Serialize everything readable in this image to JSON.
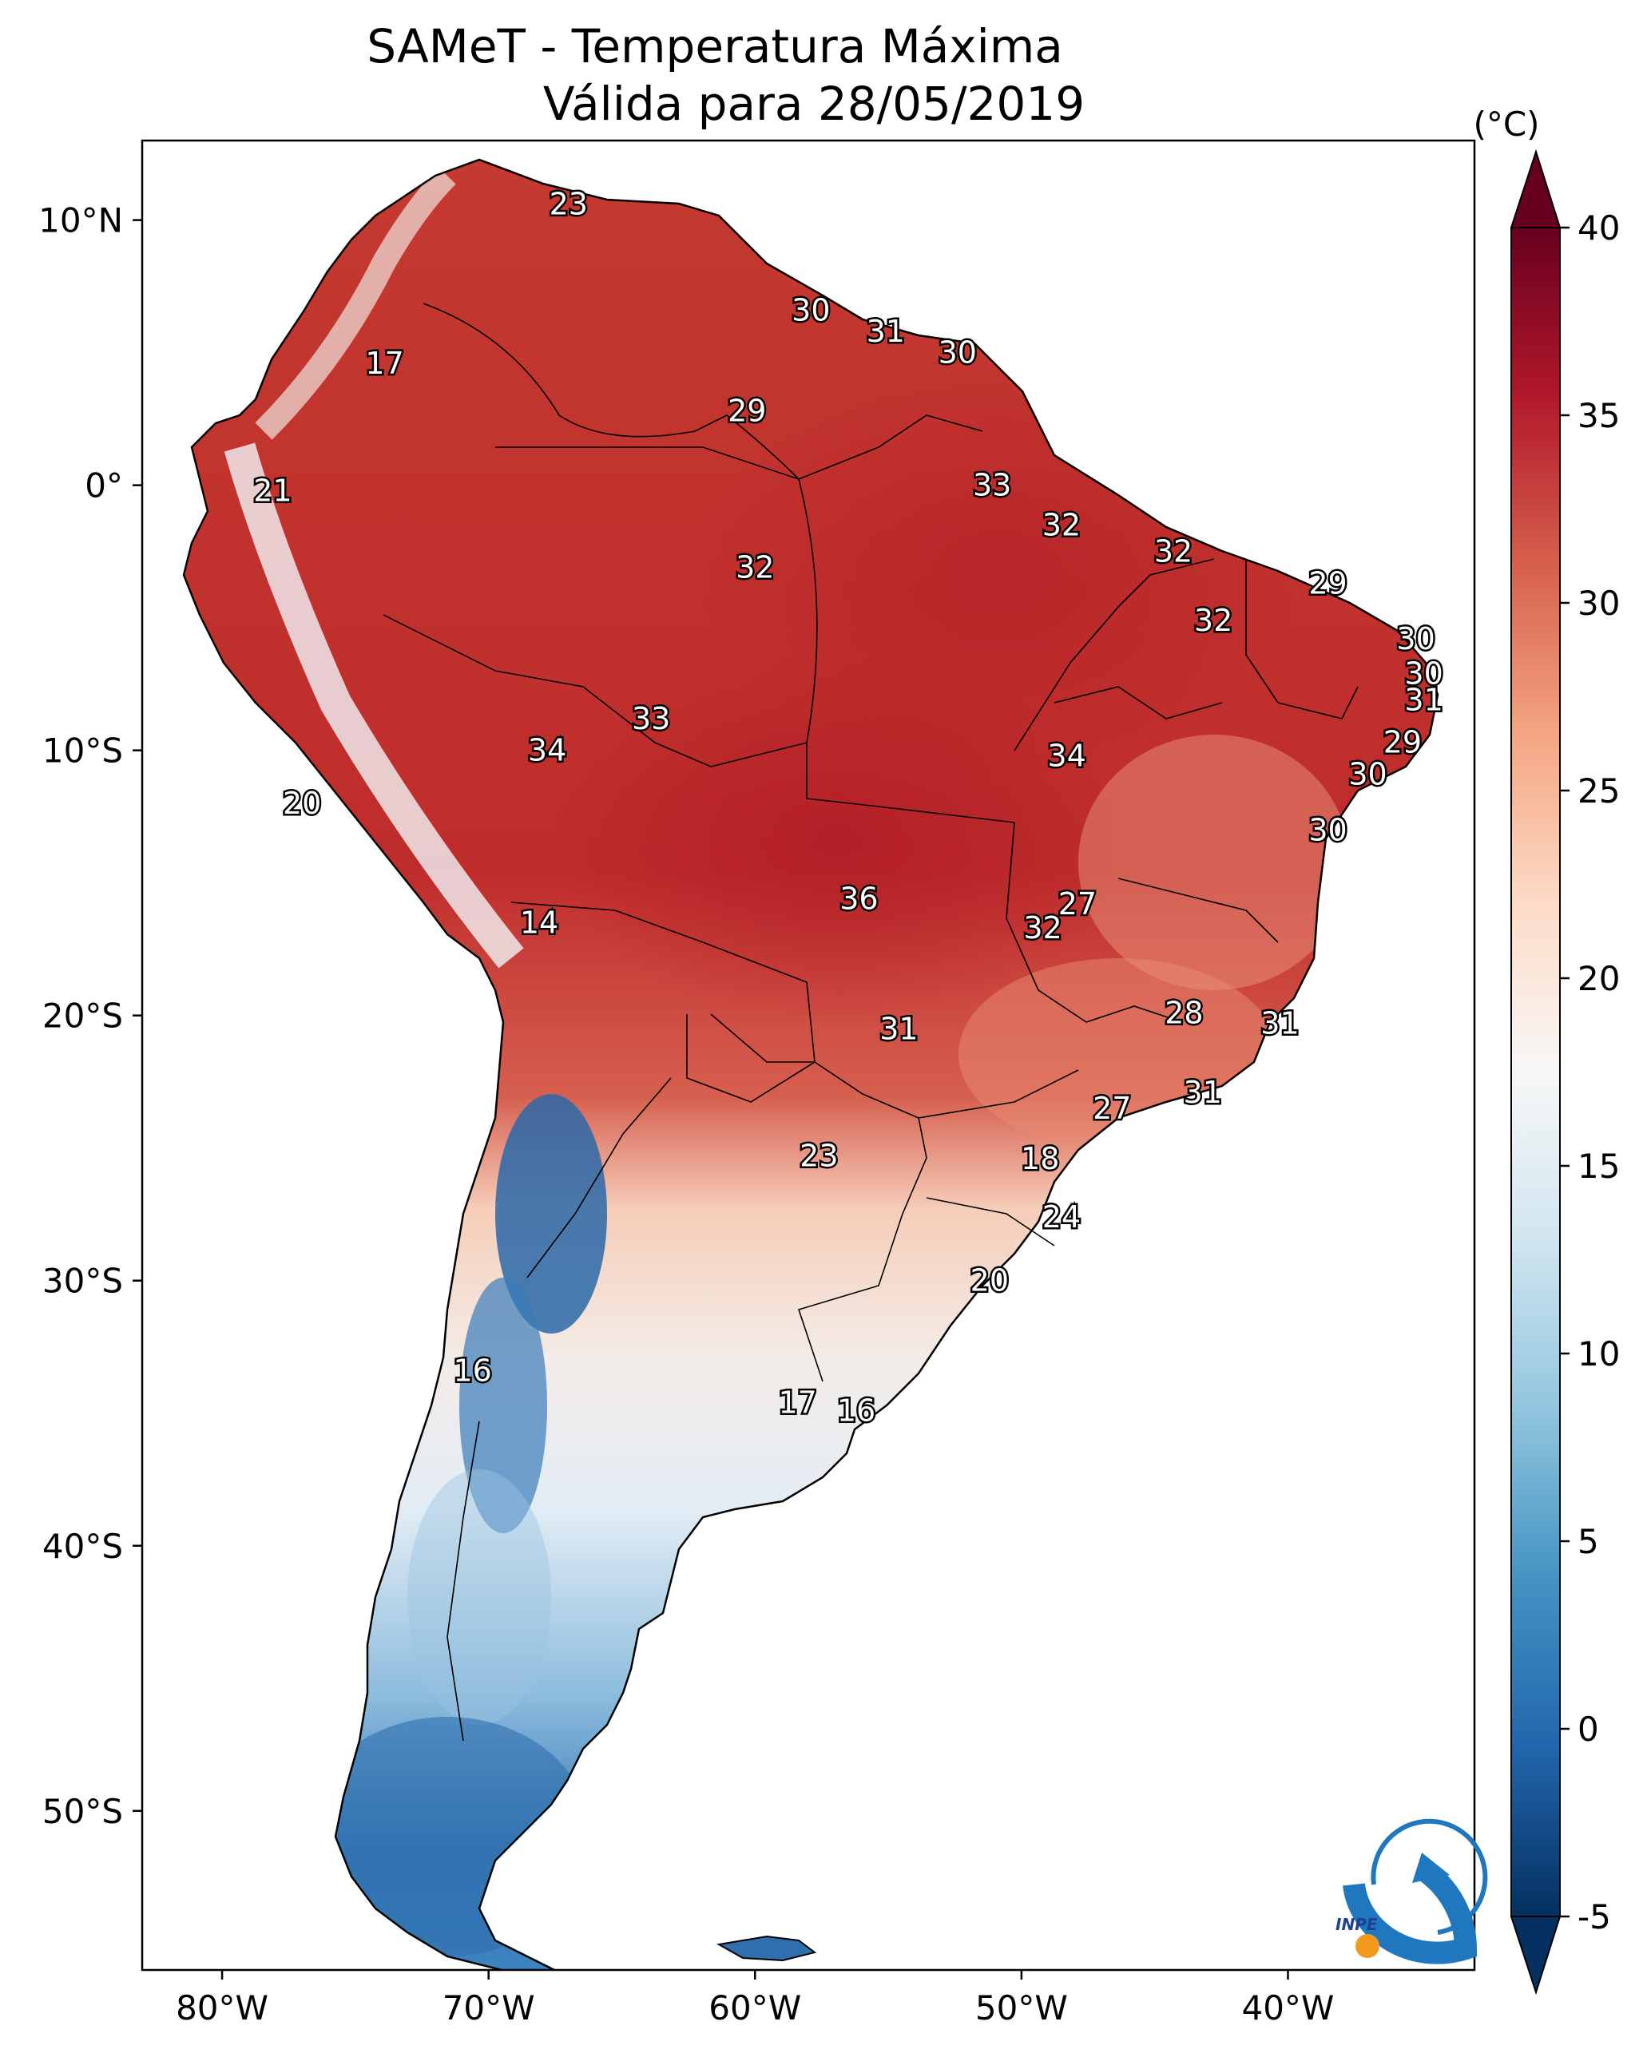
{
  "title_line1": "SAMeT - Temperatura Máxima",
  "title_line2": "Válida para 28/05/2019",
  "map": {
    "lon_min": -83,
    "lon_max": -33,
    "lat_min": -56,
    "lat_max": 13,
    "lon_ticks": [
      {
        "value": -80,
        "label": "80°W"
      },
      {
        "value": -70,
        "label": "70°W"
      },
      {
        "value": -60,
        "label": "60°W"
      },
      {
        "value": -50,
        "label": "50°W"
      },
      {
        "value": -40,
        "label": "40°W"
      }
    ],
    "lat_ticks": [
      {
        "value": 10,
        "label": "10°N"
      },
      {
        "value": 0,
        "label": "0°"
      },
      {
        "value": -10,
        "label": "10°S"
      },
      {
        "value": -20,
        "label": "20°S"
      },
      {
        "value": -30,
        "label": "30°S"
      },
      {
        "value": -40,
        "label": "40°S"
      },
      {
        "value": -50,
        "label": "50°S"
      }
    ],
    "city_values": [
      {
        "lon": -67,
        "lat": 10.6,
        "text": "23"
      },
      {
        "lon": -57.9,
        "lat": 6.6,
        "text": "30"
      },
      {
        "lon": -55.1,
        "lat": 5.8,
        "text": "31"
      },
      {
        "lon": -52.4,
        "lat": 5.0,
        "text": "30"
      },
      {
        "lon": -73.9,
        "lat": 4.6,
        "text": "17"
      },
      {
        "lon": -60.3,
        "lat": 2.8,
        "text": "29"
      },
      {
        "lon": -51.1,
        "lat": 0.0,
        "text": "33"
      },
      {
        "lon": -78.1,
        "lat": -0.2,
        "text": "21"
      },
      {
        "lon": -48.5,
        "lat": -1.5,
        "text": "32"
      },
      {
        "lon": -44.3,
        "lat": -2.5,
        "text": "32"
      },
      {
        "lon": -60.0,
        "lat": -3.1,
        "text": "32"
      },
      {
        "lon": -38.5,
        "lat": -3.7,
        "text": "29"
      },
      {
        "lon": -42.8,
        "lat": -5.1,
        "text": "32"
      },
      {
        "lon": -35.2,
        "lat": -5.8,
        "text": "30"
      },
      {
        "lon": -34.9,
        "lat": -7.1,
        "text": "30"
      },
      {
        "lon": -34.9,
        "lat": -8.1,
        "text": "31"
      },
      {
        "lon": -63.9,
        "lat": -8.8,
        "text": "33"
      },
      {
        "lon": -35.7,
        "lat": -9.7,
        "text": "29"
      },
      {
        "lon": -67.8,
        "lat": -10.0,
        "text": "34"
      },
      {
        "lon": -48.3,
        "lat": -10.2,
        "text": "34"
      },
      {
        "lon": -37.0,
        "lat": -10.9,
        "text": "30"
      },
      {
        "lon": -77.0,
        "lat": -12.0,
        "text": "20"
      },
      {
        "lon": -38.5,
        "lat": -13.0,
        "text": "30"
      },
      {
        "lon": -56.1,
        "lat": -15.6,
        "text": "36"
      },
      {
        "lon": -47.9,
        "lat": -15.8,
        "text": "27"
      },
      {
        "lon": -49.2,
        "lat": -16.7,
        "text": "32"
      },
      {
        "lon": -68.1,
        "lat": -16.5,
        "text": "14"
      },
      {
        "lon": -43.9,
        "lat": -19.9,
        "text": "28"
      },
      {
        "lon": -40.3,
        "lat": -20.3,
        "text": "31"
      },
      {
        "lon": -54.6,
        "lat": -20.5,
        "text": "31"
      },
      {
        "lon": -43.2,
        "lat": -22.9,
        "text": "31"
      },
      {
        "lon": -46.6,
        "lat": -23.5,
        "text": "27"
      },
      {
        "lon": -57.6,
        "lat": -25.3,
        "text": "23"
      },
      {
        "lon": -49.3,
        "lat": -25.4,
        "text": "18"
      },
      {
        "lon": -48.5,
        "lat": -27.6,
        "text": "24"
      },
      {
        "lon": -51.2,
        "lat": -30.0,
        "text": "20"
      },
      {
        "lon": -70.6,
        "lat": -33.4,
        "text": "16"
      },
      {
        "lon": -58.4,
        "lat": -34.6,
        "text": "17"
      },
      {
        "lon": -56.2,
        "lat": -34.9,
        "text": "16"
      }
    ]
  },
  "colorbar": {
    "unit_label": "(°C)",
    "min": -5,
    "max": 40,
    "ticks": [
      {
        "value": 40,
        "label": "40"
      },
      {
        "value": 35,
        "label": "35"
      },
      {
        "value": 30,
        "label": "30"
      },
      {
        "value": 25,
        "label": "25"
      },
      {
        "value": 20,
        "label": "20"
      },
      {
        "value": 15,
        "label": "15"
      },
      {
        "value": 10,
        "label": "10"
      },
      {
        "value": 5,
        "label": "5"
      },
      {
        "value": 0,
        "label": "0"
      },
      {
        "value": -5,
        "label": "-5"
      }
    ],
    "colors": [
      "#053061",
      "#2166ac",
      "#4393c3",
      "#92c5de",
      "#d1e5f0",
      "#f7f7f7",
      "#fddbc7",
      "#f4a582",
      "#d6604d",
      "#b2182b",
      "#67001f"
    ]
  },
  "logo_text": "INPE",
  "colors": {
    "hot": "#c0282a",
    "warm": "#e36b57",
    "mild": "#f8c8b2",
    "cool": "#eef2f6",
    "cold": "#5b9bcc",
    "coldest": "#2d6aa8",
    "logo_blue": "#1f77c0",
    "logo_orange": "#f39a1e"
  }
}
